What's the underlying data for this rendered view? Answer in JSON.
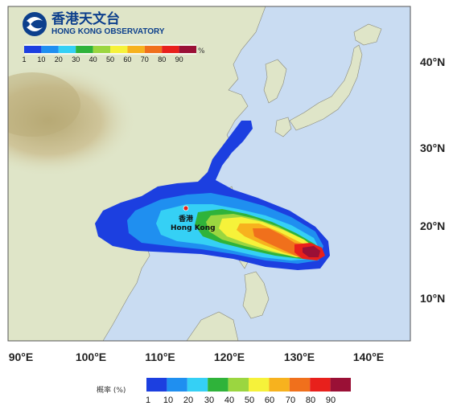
{
  "organization": {
    "name_cn": "香港天文台",
    "name_en": "HONG KONG OBSERVATORY"
  },
  "map": {
    "lat_labels": [
      "40°N",
      "30°N",
      "20°N",
      "10°N"
    ],
    "lon_labels": [
      "90°E",
      "100°E",
      "110°E",
      "120°E",
      "130°E",
      "140°E"
    ],
    "place": {
      "label_cn": "香港",
      "label_en": "Hong Kong"
    },
    "colors": {
      "sea": "#c9dcf2",
      "land": "#dfe5c8",
      "land_high": "#c8c09a",
      "marker": "#e2221c"
    }
  },
  "legend_top": {
    "unit": "%",
    "ticks": [
      "1",
      "10",
      "20",
      "30",
      "40",
      "50",
      "60",
      "70",
      "80",
      "90"
    ]
  },
  "legend_bottom": {
    "label": "概率 (%)",
    "ticks": [
      "1",
      "10",
      "20",
      "30",
      "40",
      "50",
      "60",
      "70",
      "80",
      "90"
    ]
  },
  "colorscale": [
    "#1c3fe0",
    "#1f8ff0",
    "#35d0f5",
    "#2fb33a",
    "#9bd640",
    "#f6f23a",
    "#f7b21e",
    "#f0701c",
    "#e8201c",
    "#9a1036"
  ]
}
